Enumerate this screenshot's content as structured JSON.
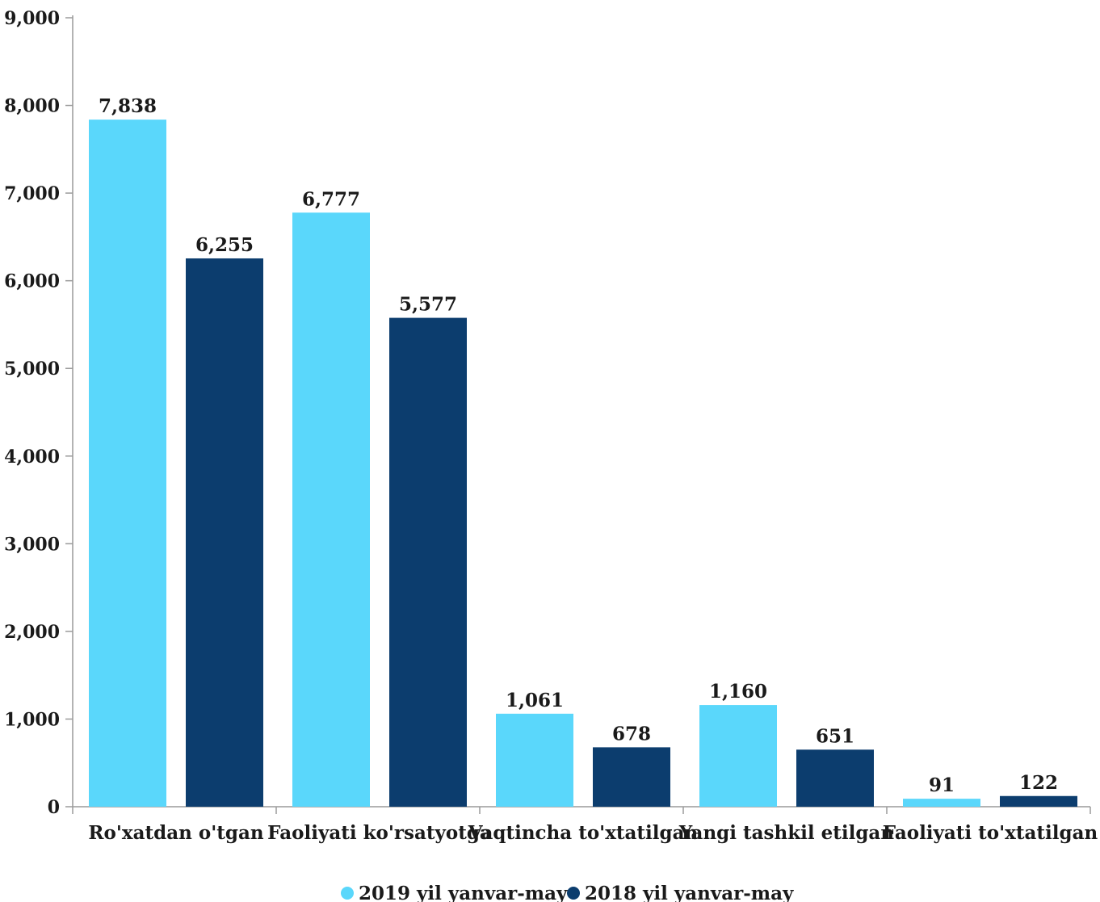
{
  "chart_data": {
    "type": "bar",
    "categories": [
      "Ro'xatdan o'tgan",
      "Faoliyati ko'rsatyotga",
      "Vaqtincha to'xtatilgan",
      "Yangi tashkil etilgan",
      "Faoliyati to'xtatilgan"
    ],
    "series": [
      {
        "name": "2019 yil yanvar-may",
        "color": "#5ad7fb",
        "values": [
          7838,
          6777,
          1061,
          1160,
          91
        ],
        "labels": [
          "7,838",
          "6,777",
          "1,061",
          "1,160",
          "91"
        ]
      },
      {
        "name": "2018 yil yanvar-may",
        "color": "#0c3d6e",
        "values": [
          6255,
          5577,
          678,
          651,
          122
        ],
        "labels": [
          "6,255",
          "5,577",
          "678",
          "651",
          "122"
        ]
      }
    ],
    "ylim": [
      0,
      9000
    ],
    "yticks": [
      0,
      1000,
      2000,
      3000,
      4000,
      5000,
      6000,
      7000,
      8000,
      9000
    ],
    "ytick_labels": [
      "0",
      "1,000",
      "2,000",
      "3,000",
      "4,000",
      "5,000",
      "6,000",
      "7,000",
      "8,000",
      "9,000"
    ],
    "grid": false,
    "legend_position": "bottom-center",
    "title": "",
    "xlabel": "",
    "ylabel": ""
  }
}
